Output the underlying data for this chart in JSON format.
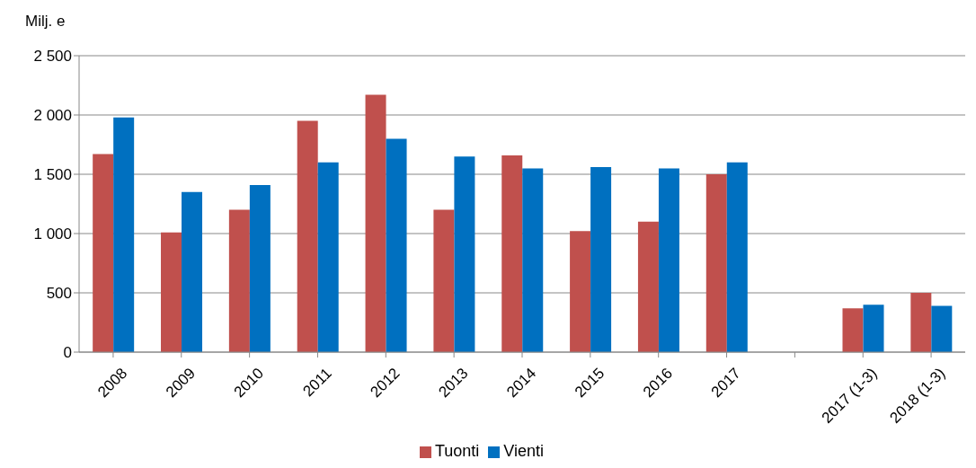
{
  "chart_data": {
    "type": "bar",
    "ylabel": "Milj. e",
    "categories": [
      "2008",
      "2009",
      "2010",
      "2011",
      "2012",
      "2013",
      "2014",
      "2015",
      "2016",
      "2017",
      null,
      "2017 (1-3)",
      "2018 (1-3)"
    ],
    "series": [
      {
        "name": "Tuonti",
        "color": "#c0504d",
        "values": [
          1670,
          1010,
          1200,
          1950,
          2170,
          1200,
          1660,
          1020,
          1100,
          1500,
          null,
          370,
          500
        ]
      },
      {
        "name": "Vienti",
        "color": "#0070c0",
        "values": [
          1980,
          1350,
          1410,
          1600,
          1800,
          1650,
          1550,
          1560,
          1550,
          1600,
          null,
          400,
          390
        ]
      }
    ],
    "ylim": [
      0,
      2500
    ],
    "yticks": [
      0,
      500,
      {
        "value": 1000,
        "label": "1 000"
      },
      {
        "value": 1500,
        "label": "1 500"
      },
      {
        "value": 2000,
        "label": "2 000"
      },
      {
        "value": 2500,
        "label": "2 500"
      }
    ],
    "grid": "y",
    "legend": "bottom"
  }
}
